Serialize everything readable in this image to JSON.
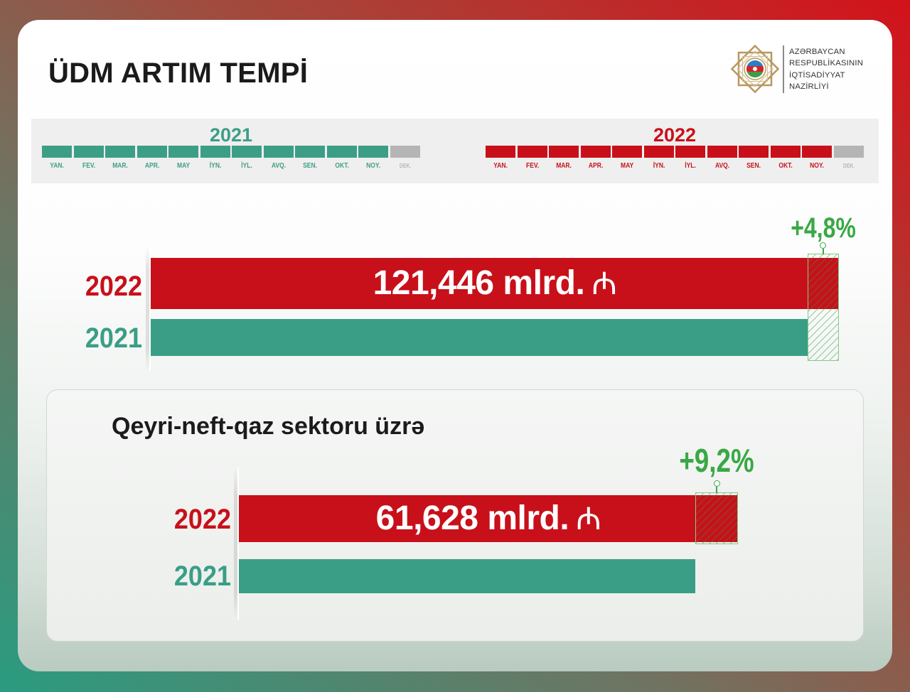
{
  "title": "ÜDM ARTIM TEMPİ",
  "logo": {
    "icon": "ministry-emblem-icon",
    "lines": [
      "AZƏRBAYCAN",
      "RESPUBLİKASININ",
      "İQTİSADİYYAT",
      "NAZİRLİYİ"
    ]
  },
  "timeline": [
    {
      "year": "2021",
      "color": "#3d9e86",
      "months": [
        {
          "label": "YAN.",
          "done": true
        },
        {
          "label": "FEV.",
          "done": true
        },
        {
          "label": "MAR.",
          "done": true
        },
        {
          "label": "APR.",
          "done": true
        },
        {
          "label": "MAY",
          "done": true
        },
        {
          "label": "İYN.",
          "done": true
        },
        {
          "label": "İYL.",
          "done": true
        },
        {
          "label": "AVQ.",
          "done": true
        },
        {
          "label": "SEN.",
          "done": true
        },
        {
          "label": "OKT.",
          "done": true
        },
        {
          "label": "NOY.",
          "done": true
        },
        {
          "label": "DEK.",
          "done": false
        }
      ]
    },
    {
      "year": "2022",
      "color": "#c8101a",
      "months": [
        {
          "label": "YAN.",
          "done": true
        },
        {
          "label": "FEV.",
          "done": true
        },
        {
          "label": "MAR.",
          "done": true
        },
        {
          "label": "APR.",
          "done": true
        },
        {
          "label": "MAY",
          "done": true
        },
        {
          "label": "İYN.",
          "done": true
        },
        {
          "label": "İYL.",
          "done": true
        },
        {
          "label": "AVQ.",
          "done": true
        },
        {
          "label": "SEN.",
          "done": true
        },
        {
          "label": "OKT.",
          "done": true
        },
        {
          "label": "NOY.",
          "done": true
        },
        {
          "label": "DEK.",
          "done": false
        }
      ]
    }
  ],
  "colors": {
    "red": "#c8101a",
    "teal": "#3a9e86",
    "growth_green": "#39a845",
    "pending_gray": "#b5b5b5"
  },
  "chart_data": [
    {
      "type": "bar",
      "orientation": "horizontal",
      "categories": [
        "2022",
        "2021"
      ],
      "values": [
        121.446,
        115.9
      ],
      "value_label": "121,446 mlrd.",
      "currency": "₼",
      "growth_label": "+4,8%",
      "colors": [
        "#c8101a",
        "#3a9e86"
      ]
    },
    {
      "type": "bar",
      "orientation": "horizontal",
      "title": "Qeyri-neft-qaz sektoru üzrə",
      "categories": [
        "2022",
        "2021"
      ],
      "values": [
        61.628,
        56.4
      ],
      "value_label": "61,628 mlrd.",
      "currency": "₼",
      "growth_label": "+9,2%",
      "colors": [
        "#c8101a",
        "#3a9e86"
      ]
    }
  ]
}
